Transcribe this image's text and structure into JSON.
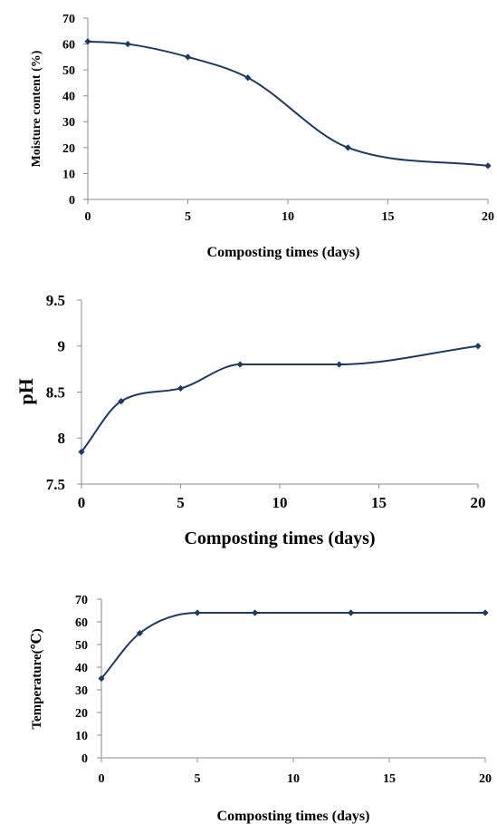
{
  "chart_data": [
    {
      "type": "line",
      "xlabel": "Composting times (days)",
      "ylabel": "Moisture content (%)",
      "xlim": [
        0,
        20
      ],
      "ylim": [
        0,
        70
      ],
      "xticks": [
        "0",
        "5",
        "10",
        "15",
        "20"
      ],
      "yticks": [
        "0",
        "10",
        "20",
        "30",
        "40",
        "50",
        "60",
        "70"
      ],
      "grid": false,
      "smooth": true,
      "series": [
        {
          "x": [
            0,
            2,
            5,
            8,
            13,
            20
          ],
          "y": [
            61,
            60,
            55,
            47,
            20,
            13
          ],
          "color": "#1f3864",
          "marker": "diamond"
        }
      ]
    },
    {
      "type": "line",
      "xlabel": "Composting times (days)",
      "ylabel": "pH",
      "xlim": [
        0,
        20
      ],
      "ylim": [
        7.5,
        9.5
      ],
      "xticks": [
        "0",
        "5",
        "10",
        "15",
        "20"
      ],
      "yticks": [
        "7.5",
        "8",
        "8.5",
        "9",
        "9.5"
      ],
      "grid": false,
      "smooth": true,
      "series": [
        {
          "x": [
            0,
            2,
            5,
            8,
            13,
            20
          ],
          "y": [
            7.85,
            8.4,
            8.54,
            8.8,
            8.8,
            9.0
          ],
          "color": "#1f3864",
          "marker": "diamond"
        }
      ]
    },
    {
      "type": "line",
      "xlabel": "Composting times (days)",
      "ylabel": "Temperature(℃)",
      "xlim": [
        0,
        20
      ],
      "ylim": [
        0,
        70
      ],
      "xticks": [
        "0",
        "5",
        "10",
        "15",
        "20"
      ],
      "yticks": [
        "0",
        "10",
        "20",
        "30",
        "40",
        "50",
        "60",
        "70"
      ],
      "grid": false,
      "smooth": true,
      "series": [
        {
          "x": [
            0,
            2,
            5,
            8,
            13,
            20
          ],
          "y": [
            35,
            55,
            64,
            64,
            64,
            64
          ],
          "color": "#1f3864",
          "marker": "diamond"
        }
      ]
    }
  ]
}
